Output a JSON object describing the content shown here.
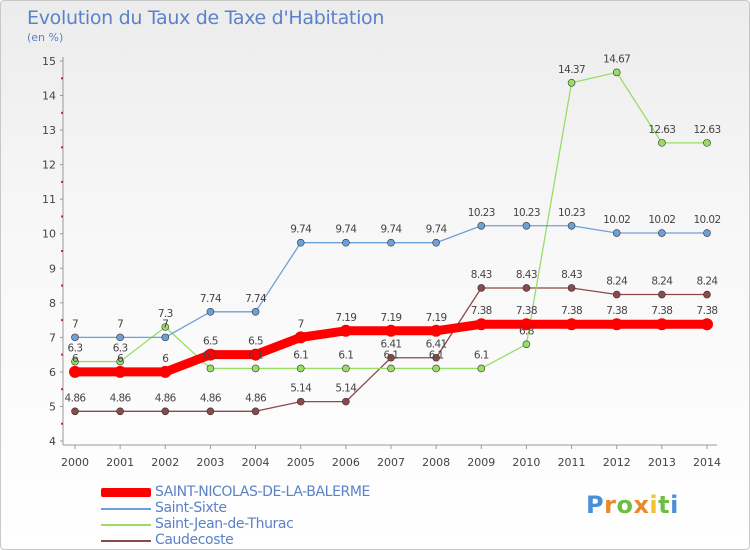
{
  "header": {
    "title": "Evolution du Taux de Taxe d'Habitation",
    "subtitle": "(en %)"
  },
  "logo": {
    "letters": [
      "P",
      "r",
      "o",
      "x",
      "i",
      "t",
      "i"
    ]
  },
  "chart_data": {
    "type": "line",
    "x": [
      "2000",
      "2001",
      "2002",
      "2003",
      "2004",
      "2005",
      "2006",
      "2007",
      "2008",
      "2009",
      "2010",
      "2011",
      "2012",
      "2013",
      "2014"
    ],
    "ylim": [
      4,
      15
    ],
    "yticks": [
      "4",
      "5",
      "6",
      "7",
      "8",
      "9",
      "10",
      "11",
      "12",
      "13",
      "14",
      "15"
    ],
    "grid": false,
    "legend_position": "bottom",
    "series": [
      {
        "name": "SAINT-NICOLAS-DE-LA-BALERME",
        "color": "#ff0000",
        "values": [
          6,
          6,
          6,
          6.5,
          6.5,
          7,
          7.19,
          7.19,
          7.19,
          7.38,
          7.38,
          7.38,
          7.38,
          7.38,
          7.38
        ],
        "labels": [
          "6",
          "6",
          "6",
          "6.5",
          "6.5",
          "7",
          "7.19",
          "7.19",
          "7.19",
          "7.38",
          "7.38",
          "7.38",
          "7.38",
          "7.38",
          "7.38"
        ]
      },
      {
        "name": "Saint-Sixte",
        "color": "#6ea0d8",
        "values": [
          7,
          7,
          7,
          7.74,
          7.74,
          9.74,
          9.74,
          9.74,
          9.74,
          10.23,
          10.23,
          10.23,
          10.02,
          10.02,
          10.02
        ],
        "labels": [
          "7",
          "7",
          "7",
          "7.74",
          "7.74",
          "9.74",
          "9.74",
          "9.74",
          "9.74",
          "10.23",
          "10.23",
          "10.23",
          "10.02",
          "10.02",
          "10.02"
        ]
      },
      {
        "name": "Saint-Jean-de-Thurac",
        "color": "#99dd66",
        "values": [
          6.3,
          6.3,
          7.3,
          6.1,
          6.1,
          6.1,
          6.1,
          6.1,
          6.1,
          6.1,
          6.8,
          14.37,
          14.67,
          12.63,
          12.63
        ],
        "labels": [
          "6.3",
          "6.3",
          "7.3",
          "6.1",
          "6.1",
          "6.1",
          "6.1",
          "6.1",
          "6.1",
          "6.1",
          "6.8",
          "14.37",
          "14.67",
          "12.63",
          "12.63"
        ]
      },
      {
        "name": "Caudecoste",
        "color": "#8b4a4a",
        "values": [
          4.86,
          4.86,
          4.86,
          4.86,
          4.86,
          5.14,
          5.14,
          6.41,
          6.41,
          8.43,
          8.43,
          8.43,
          8.24,
          8.24,
          8.24
        ],
        "labels": [
          "4.86",
          "4.86",
          "4.86",
          "4.86",
          "4.86",
          "5.14",
          "5.14",
          "6.41",
          "6.41",
          "8.43",
          "8.43",
          "8.43",
          "8.24",
          "8.24",
          "8.24"
        ]
      }
    ]
  }
}
